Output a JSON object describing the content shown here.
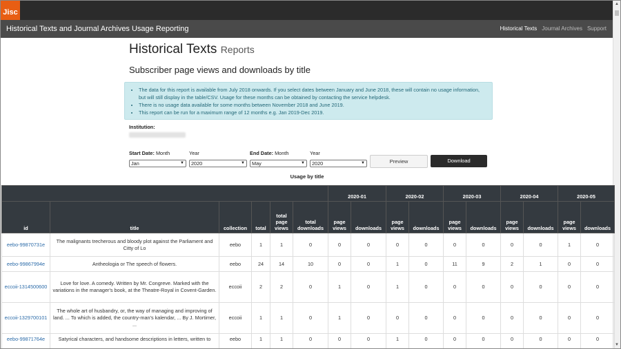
{
  "header": {
    "logo_text": "Jisc"
  },
  "nav": {
    "title": "Historical Texts and Journal Archives Usage Reporting",
    "links": [
      {
        "label": "Historical Texts",
        "active": true
      },
      {
        "label": "Journal Archives",
        "active": false
      },
      {
        "label": "Support",
        "active": false
      }
    ]
  },
  "page": {
    "title": "Historical Texts",
    "subtitle": "Reports",
    "report_title": "Subscriber page views and downloads by title"
  },
  "info": {
    "bullets": [
      "The data for this report is available from July 2018 onwards. If you select dates between January and June 2018, these will contain no usage information, but will still display in the table/CSV. Usage for these months can be obtained by contacting the service helpdesk.",
      "There is no usage data available for some months between November 2018 and June 2019.",
      "This report can be run for a maximum range of 12 months e.g. Jan 2019-Dec 2019."
    ]
  },
  "form": {
    "institution_label": "Institution:",
    "start_label": "Start Date:",
    "end_label": "End Date:",
    "month_label": "Month",
    "year_label": "Year",
    "start_month": "Jan",
    "start_year": "2020",
    "end_month": "May",
    "end_year": "2020",
    "preview_label": "Preview",
    "download_label": "Download"
  },
  "table": {
    "caption": "Usage by title",
    "months": [
      "2020-01",
      "2020-02",
      "2020-03",
      "2020-04",
      "2020-05"
    ],
    "headers": {
      "id": "id",
      "title": "title",
      "collection": "collection",
      "total": "total",
      "total_page_views": "total page views",
      "total_downloads": "total downloads",
      "page_views": "page views",
      "downloads": "downloads"
    },
    "rows": [
      {
        "id": "eebo-99870731e",
        "title": "The malignants trecherous and bloody plot against the Parliament and Citty of Lo",
        "collection": "eebo",
        "total": "1",
        "tpv": "1",
        "tdl": "0",
        "m": [
          "0",
          "0",
          "0",
          "0",
          "0",
          "0",
          "0",
          "0",
          "1",
          "0"
        ]
      },
      {
        "id": "eebo-99867994e",
        "title": "Antheologia or The speech of flowers.",
        "collection": "eebo",
        "total": "24",
        "tpv": "14",
        "tdl": "10",
        "m": [
          "0",
          "0",
          "1",
          "0",
          "11",
          "9",
          "2",
          "1",
          "0",
          "0"
        ]
      },
      {
        "id": "eccoii-1314500600",
        "title": "Love for love. A comedy. Written by Mr. Congreve. Marked with the variations in the manager's book, at the Theatre-Royal in Covent-Garden.",
        "collection": "eccoii",
        "total": "2",
        "tpv": "2",
        "tdl": "0",
        "m": [
          "1",
          "0",
          "1",
          "0",
          "0",
          "0",
          "0",
          "0",
          "0",
          "0"
        ]
      },
      {
        "id": "eccoii-1329700101",
        "title": "The whole art of husbandry, or, the way of managing and improving of land. ... To which is added, the country-man's kalendar, ... By J. Mortimer, ...",
        "collection": "eccoii",
        "total": "1",
        "tpv": "1",
        "tdl": "0",
        "m": [
          "1",
          "0",
          "0",
          "0",
          "0",
          "0",
          "0",
          "0",
          "0",
          "0"
        ]
      },
      {
        "id": "eebo-99871764e",
        "title": "Satyrical characters, and handsome descriptions in letters, written to",
        "collection": "eebo",
        "total": "1",
        "tpv": "1",
        "tdl": "0",
        "m": [
          "0",
          "0",
          "1",
          "0",
          "0",
          "0",
          "0",
          "0",
          "0",
          "0"
        ]
      }
    ]
  }
}
